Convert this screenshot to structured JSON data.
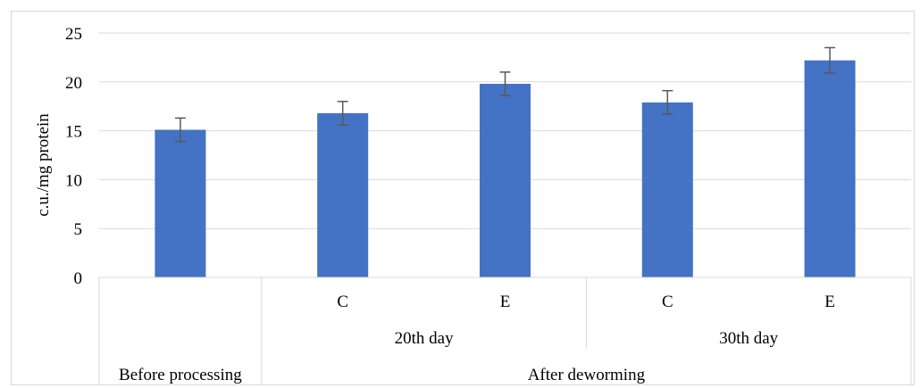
{
  "chart_data": {
    "type": "bar",
    "title": "",
    "xlabel": "",
    "ylabel": "c.u./mg protein",
    "ylim": [
      0,
      25
    ],
    "yticks": [
      0,
      5,
      10,
      15,
      20,
      25
    ],
    "grid": true,
    "legend": "none",
    "bar_color": "#4472c4",
    "error_color": "#595959",
    "categories": [
      "Before processing",
      "20th day C",
      "20th day E",
      "30th day C",
      "30th day E"
    ],
    "values": [
      15.1,
      16.8,
      19.8,
      17.9,
      22.2
    ],
    "errors": [
      1.2,
      1.2,
      1.2,
      1.2,
      1.3
    ],
    "axis_levels": {
      "level1": [
        "",
        "C",
        "E",
        "C",
        "E"
      ],
      "level2": [
        {
          "label": "",
          "span": [
            0,
            0
          ]
        },
        {
          "label": "20th day",
          "span": [
            1,
            2
          ]
        },
        {
          "label": "30th day",
          "span": [
            3,
            4
          ]
        }
      ],
      "level3": [
        {
          "label": "Before processing",
          "span": [
            0,
            0
          ]
        },
        {
          "label": "After deworming",
          "span": [
            1,
            4
          ]
        }
      ]
    }
  }
}
